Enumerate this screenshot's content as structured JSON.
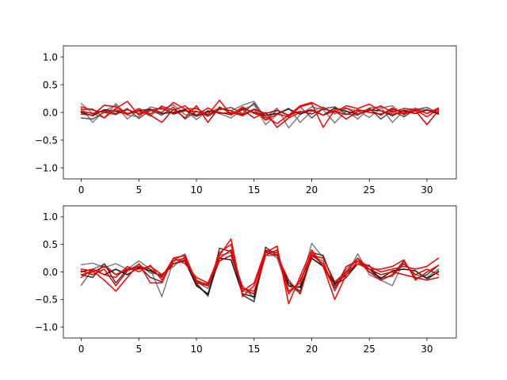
{
  "chart_data": [
    {
      "type": "line",
      "title": "",
      "xlabel": "",
      "ylabel": "",
      "xlim": [
        -1.55,
        32.55
      ],
      "ylim": [
        -1.2,
        1.2
      ],
      "xticks": [
        0,
        5,
        10,
        15,
        20,
        25,
        30
      ],
      "yticks": [
        -1.0,
        -0.5,
        0.0,
        0.5,
        1.0
      ],
      "ytick_labels": [
        "−1.0",
        "−0.5",
        "0.0",
        "0.5",
        "1.0"
      ],
      "grid": false,
      "x": [
        0,
        1,
        2,
        3,
        4,
        5,
        6,
        7,
        8,
        9,
        10,
        11,
        12,
        13,
        14,
        15,
        16,
        17,
        18,
        19,
        20,
        21,
        22,
        23,
        24,
        25,
        26,
        27,
        28,
        29,
        30,
        31
      ],
      "series": [
        {
          "color": "#7f7f7f",
          "values": [
            0.16,
            -0.02,
            -0.1,
            0.16,
            -0.05,
            -0.08,
            0.1,
            0.05,
            0.14,
            -0.04,
            -0.06,
            0.0,
            0.08,
            0.03,
            0.13,
            0.2,
            -0.1,
            0.08,
            -0.28,
            -0.04,
            0.1,
            0.05,
            -0.19,
            0.03,
            -0.12,
            0.08,
            0.1,
            -0.18,
            0.03,
            0.07,
            0.04,
            -0.03
          ]
        },
        {
          "color": "#7f7f7f",
          "values": [
            0.08,
            -0.18,
            0.03,
            0.13,
            -0.12,
            0.05,
            -0.07,
            0.12,
            -0.02,
            0.05,
            -0.13,
            0.04,
            -0.02,
            -0.1,
            0.05,
            0.14,
            -0.22,
            -0.04,
            0.08,
            -0.18,
            0.02,
            0.1,
            -0.03,
            0.07,
            0.03,
            -0.09,
            0.08,
            0.12,
            -0.05,
            0.08,
            -0.02,
            0.05
          ]
        },
        {
          "color": "#555555",
          "values": [
            -0.1,
            -0.12,
            0.0,
            -0.04,
            0.07,
            -0.11,
            0.04,
            -0.05,
            0.1,
            -0.12,
            0.02,
            -0.07,
            0.05,
            0.09,
            -0.02,
            0.17,
            -0.14,
            0.04,
            -0.06,
            0.1,
            -0.1,
            0.07,
            0.1,
            -0.03,
            -0.05,
            0.08,
            -0.12,
            0.03,
            -0.08,
            0.05,
            0.09,
            -0.02
          ]
        },
        {
          "color": "#222222",
          "values": [
            0.0,
            -0.06,
            0.05,
            0.02,
            -0.03,
            0.03,
            0.06,
            -0.02,
            0.0,
            0.05,
            -0.07,
            0.02,
            0.0,
            -0.04,
            0.07,
            0.0,
            -0.05,
            -0.02,
            0.06,
            -0.03,
            0.04,
            -0.05,
            0.08,
            0.02,
            -0.03,
            0.05,
            0.03,
            -0.06,
            0.04,
            -0.02,
            0.05,
            -0.03
          ]
        },
        {
          "color": "#ff0000",
          "values": [
            0.05,
            0.06,
            -0.1,
            0.07,
            0.2,
            -0.05,
            0.05,
            0.0,
            0.18,
            0.06,
            0.07,
            -0.04,
            0.22,
            -0.05,
            0.1,
            -0.02,
            -0.08,
            -0.2,
            -0.05,
            0.12,
            0.18,
            0.07,
            0.0,
            0.12,
            0.07,
            0.15,
            0.03,
            -0.03,
            -0.01,
            0.06,
            -0.02,
            0.08
          ]
        },
        {
          "color": "#ff0000",
          "values": [
            0.1,
            0.04,
            0.0,
            0.05,
            -0.04,
            0.07,
            -0.03,
            0.11,
            0.04,
            0.12,
            -0.05,
            0.08,
            -0.02,
            0.0,
            -0.06,
            0.05,
            -0.14,
            -0.03,
            -0.08,
            0.1,
            0.16,
            -0.27,
            0.05,
            0.08,
            -0.03,
            0.03,
            0.12,
            0.0,
            0.07,
            0.05,
            -0.08,
            0.06
          ]
        },
        {
          "color": "#e00000",
          "values": [
            -0.03,
            -0.05,
            0.13,
            0.1,
            -0.02,
            0.03,
            -0.05,
            -0.18,
            0.06,
            -0.1,
            0.12,
            -0.18,
            0.1,
            -0.02,
            0.05,
            -0.1,
            0.0,
            -0.27,
            -0.1,
            0.0,
            0.05,
            -0.05,
            0.03,
            -0.12,
            0.02,
            0.05,
            -0.05,
            0.08,
            -0.03,
            0.03,
            -0.22,
            0.03
          ]
        },
        {
          "color": "#cc0000",
          "values": [
            0.02,
            -0.02,
            0.03,
            -0.02,
            0.05,
            -0.02,
            0.04,
            0.08,
            -0.03,
            0.03,
            0.02,
            -0.05,
            0.07,
            0.03,
            -0.04,
            0.06,
            -0.02,
            0.04,
            -0.05,
            0.02,
            -0.03,
            0.06,
            0.02,
            -0.04,
            0.05,
            0.0,
            -0.03,
            0.05,
            0.02,
            -0.02,
            0.04,
            0.0
          ]
        }
      ]
    },
    {
      "type": "line",
      "title": "",
      "xlabel": "",
      "ylabel": "",
      "xlim": [
        -1.55,
        32.55
      ],
      "ylim": [
        -1.2,
        1.2
      ],
      "xticks": [
        0,
        5,
        10,
        15,
        20,
        25,
        30
      ],
      "yticks": [
        -1.0,
        -0.5,
        0.0,
        0.5,
        1.0
      ],
      "ytick_labels": [
        "−1.0",
        "−0.5",
        "0.0",
        "0.5",
        "1.0"
      ],
      "grid": false,
      "x": [
        0,
        1,
        2,
        3,
        4,
        5,
        6,
        7,
        8,
        9,
        10,
        11,
        12,
        13,
        14,
        15,
        16,
        17,
        18,
        19,
        20,
        21,
        22,
        23,
        24,
        25,
        26,
        27,
        28,
        29,
        30,
        31
      ],
      "series": [
        {
          "color": "#7f7f7f",
          "values": [
            0.13,
            0.16,
            0.08,
            0.15,
            0.05,
            0.2,
            0.05,
            -0.45,
            0.2,
            0.33,
            -0.2,
            -0.44,
            0.3,
            0.35,
            -0.35,
            -0.4,
            0.4,
            0.25,
            -0.35,
            -0.25,
            0.52,
            0.26,
            -0.2,
            -0.05,
            0.33,
            -0.05,
            -0.15,
            -0.25,
            0.2,
            -0.1,
            -0.15,
            0.02
          ]
        },
        {
          "color": "#6a6a6a",
          "values": [
            -0.24,
            0.05,
            0.14,
            -0.05,
            0.02,
            0.14,
            -0.02,
            -0.05,
            0.1,
            0.28,
            -0.18,
            -0.3,
            0.2,
            0.3,
            -0.25,
            -0.48,
            0.3,
            0.3,
            -0.25,
            -0.38,
            0.28,
            0.2,
            -0.35,
            0.05,
            0.25,
            0.0,
            -0.1,
            -0.08,
            0.15,
            -0.05,
            -0.1,
            0.05
          ]
        },
        {
          "color": "#3a3a3a",
          "values": [
            -0.05,
            -0.1,
            0.15,
            -0.2,
            0.05,
            0.1,
            -0.1,
            -0.18,
            0.25,
            0.3,
            -0.22,
            -0.43,
            0.43,
            0.37,
            -0.42,
            -0.54,
            0.45,
            0.3,
            -0.2,
            -0.35,
            0.35,
            0.3,
            -0.25,
            -0.1,
            0.15,
            0.12,
            -0.15,
            -0.05,
            0.2,
            -0.12,
            -0.05,
            0.12
          ]
        },
        {
          "color": "#111111",
          "values": [
            0.0,
            0.05,
            -0.05,
            0.05,
            -0.05,
            0.08,
            0.02,
            -0.08,
            0.15,
            0.2,
            -0.25,
            -0.4,
            0.25,
            0.22,
            -0.4,
            -0.45,
            0.38,
            0.35,
            -0.25,
            -0.28,
            0.25,
            0.1,
            -0.22,
            -0.05,
            0.15,
            0.05,
            -0.12,
            0.02,
            0.05,
            0.02,
            -0.12,
            0.0
          ]
        },
        {
          "color": "#ff0000",
          "values": [
            0.05,
            0.02,
            -0.15,
            -0.35,
            -0.1,
            0.15,
            -0.2,
            -0.2,
            0.25,
            0.15,
            -0.1,
            -0.2,
            0.3,
            0.6,
            -0.45,
            -0.25,
            0.35,
            0.47,
            -0.58,
            -0.08,
            0.4,
            0.1,
            -0.5,
            -0.05,
            0.2,
            0.1,
            0.0,
            0.05,
            0.1,
            0.05,
            0.1,
            0.25
          ]
        },
        {
          "color": "#ff0000",
          "values": [
            -0.1,
            0.05,
            -0.05,
            -0.1,
            0.1,
            0.0,
            0.12,
            -0.15,
            0.2,
            0.25,
            -0.15,
            -0.25,
            0.35,
            0.5,
            -0.35,
            -0.2,
            0.4,
            0.35,
            -0.4,
            -0.15,
            0.3,
            0.15,
            -0.3,
            0.0,
            0.15,
            0.05,
            0.05,
            0.1,
            0.22,
            -0.15,
            0.0,
            0.12
          ]
        },
        {
          "color": "#ee0000",
          "values": [
            0.02,
            -0.05,
            0.05,
            -0.25,
            0.02,
            0.1,
            0.05,
            -0.1,
            0.25,
            0.3,
            -0.2,
            -0.25,
            0.25,
            0.4,
            -0.3,
            -0.35,
            0.3,
            0.4,
            -0.35,
            -0.2,
            0.35,
            0.1,
            -0.3,
            0.1,
            0.2,
            0.0,
            -0.15,
            -0.05,
            0.15,
            -0.05,
            0.05,
            -0.05
          ]
        },
        {
          "color": "#dd0000",
          "values": [
            -0.05,
            0.0,
            0.1,
            -0.05,
            0.05,
            0.05,
            0.1,
            -0.05,
            0.15,
            0.22,
            -0.18,
            -0.22,
            0.2,
            0.3,
            -0.3,
            -0.4,
            0.35,
            0.3,
            -0.15,
            -0.4,
            0.3,
            0.25,
            -0.18,
            0.0,
            0.25,
            0.05,
            -0.05,
            0.0,
            -0.05,
            -0.1,
            -0.15,
            -0.1
          ]
        }
      ]
    }
  ]
}
